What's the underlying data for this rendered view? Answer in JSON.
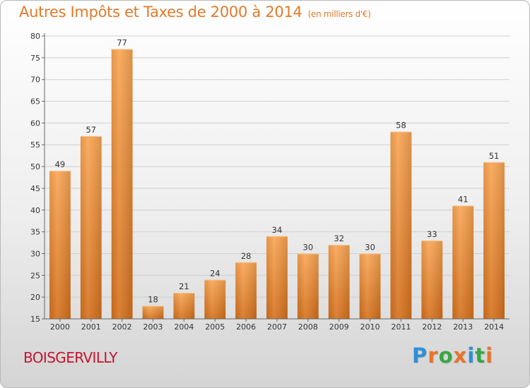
{
  "title": "Autres Impôts et Taxes de 2000 à 2014",
  "subtitle": "(en milliers d'€)",
  "place": "BOISGERVILLY",
  "logo": {
    "letters": [
      "P",
      "r",
      "o",
      "x",
      "i",
      "t",
      "i"
    ],
    "colors": [
      "#2f8fd6",
      "#e8742a",
      "#36a843",
      "#e8742a",
      "#2f8fd6",
      "#36a843",
      "#e8742a"
    ]
  },
  "chart_data": {
    "type": "bar",
    "title": "Autres Impôts et Taxes de 2000 à 2014",
    "subtitle": "(en milliers d'€)",
    "categories": [
      "2000",
      "2001",
      "2002",
      "2003",
      "2004",
      "2005",
      "2006",
      "2007",
      "2008",
      "2009",
      "2010",
      "2011",
      "2012",
      "2013",
      "2014"
    ],
    "values": [
      49,
      57,
      77,
      18,
      21,
      24,
      28,
      34,
      30,
      32,
      30,
      58,
      33,
      41,
      51
    ],
    "ylim": [
      15,
      80
    ],
    "yticks": [
      15,
      20,
      25,
      30,
      35,
      40,
      45,
      50,
      55,
      60,
      65,
      70,
      75,
      80
    ],
    "grid": true,
    "legend": "none",
    "bar_color": "#f0892f"
  }
}
